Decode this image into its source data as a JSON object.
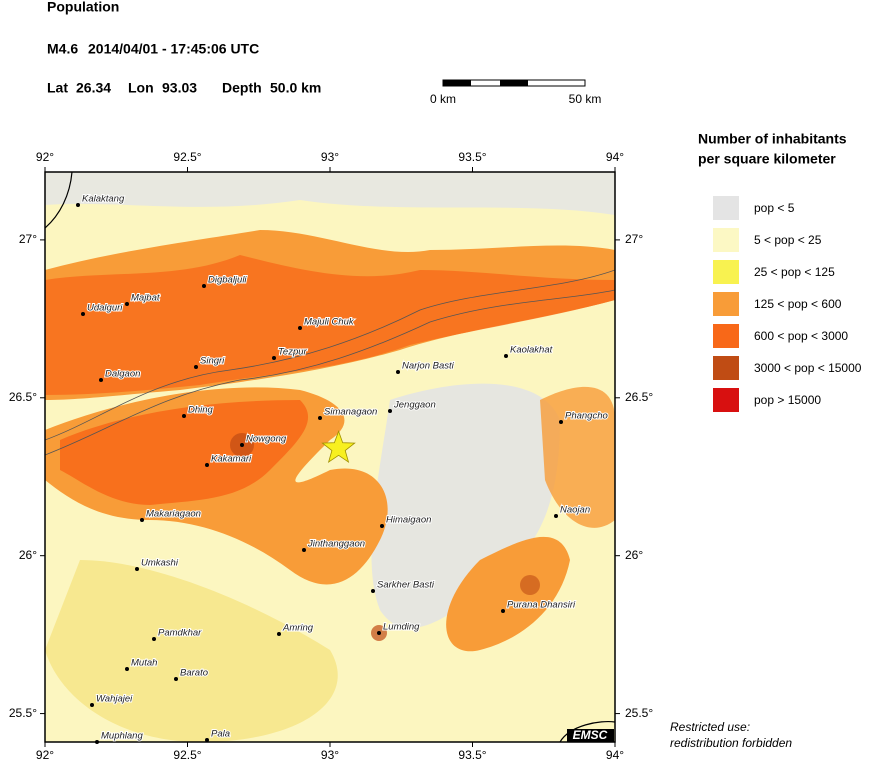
{
  "header": {
    "title": "Population",
    "magnitude": "M4.6",
    "datetime": "2014/04/01 - 17:45:06 UTC",
    "lat_label": "Lat",
    "lat": 26.34,
    "lon_label": "Lon",
    "lon": 93.03,
    "depth_label": "Depth",
    "depth": "50.0 km"
  },
  "scale_bar": {
    "start": "0 km",
    "end": "50 km"
  },
  "map": {
    "xlim": [
      92,
      94
    ],
    "ylim": [
      25.41,
      27.215
    ],
    "xticks": [
      {
        "value": 92,
        "label": "92°"
      },
      {
        "value": 92.5,
        "label": "92.5°"
      },
      {
        "value": 93,
        "label": "93°"
      },
      {
        "value": 93.5,
        "label": "93.5°"
      },
      {
        "value": 94,
        "label": "94°"
      }
    ],
    "yticks": [
      {
        "value": 25.5,
        "label": "25.5°"
      },
      {
        "value": 26,
        "label": "26°"
      },
      {
        "value": 26.5,
        "label": "26.5°"
      },
      {
        "value": 27,
        "label": "27°"
      }
    ],
    "cities": [
      "Kalaktang",
      "Digbaljuli",
      "Majbat",
      "Udalguri",
      "Majuli Chuk",
      "Tezpur",
      "Singri",
      "Narjon Basti",
      "Kaolakhat",
      "Dalgaon",
      "Simanagaon",
      "Jenggaon",
      "Dhing",
      "Phangcho",
      "Nowgong",
      "Kakamari",
      "Makariagaon",
      "Himaigaon",
      "Naojan",
      "Jinthanggaon",
      "Umkashi",
      "Sarkher Basti",
      "Purana Dhansiri",
      "Lumding",
      "Pamdkhar",
      "Amring",
      "Mutah",
      "Barato",
      "Wahjajei",
      "Pala",
      "Muphlang"
    ],
    "credit": "EMSC"
  },
  "legend": {
    "title": [
      "Number of inhabitants",
      "per square kilometer"
    ],
    "items": [
      {
        "label": "pop < 5",
        "color": "#e4e4e4"
      },
      {
        "label": "5 < pop < 25",
        "color": "#fcf8c4"
      },
      {
        "label": "25 < pop < 125",
        "color": "#f8f250"
      },
      {
        "label": "125 < pop < 600",
        "color": "#f89c38"
      },
      {
        "label": "600 < pop < 3000",
        "color": "#f86818"
      },
      {
        "label": "3000 < pop < 15000",
        "color": "#c04c14"
      },
      {
        "label": "pop > 15000",
        "color": "#d81010"
      }
    ]
  },
  "notice": [
    "Restricted use:",
    "redistribution forbidden"
  ]
}
